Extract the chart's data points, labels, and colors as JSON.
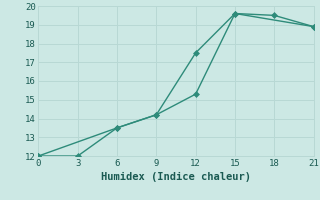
{
  "line1_x": [
    0,
    6,
    9,
    12,
    15,
    18,
    21
  ],
  "line1_y": [
    12,
    13.5,
    14.2,
    17.5,
    19.6,
    19.5,
    18.9
  ],
  "line2_x": [
    0,
    3,
    6,
    9,
    12,
    15,
    21
  ],
  "line2_y": [
    12,
    12,
    13.5,
    14.2,
    15.3,
    19.6,
    18.9
  ],
  "line_color": "#2e8b7a",
  "marker_color": "#2e8b7a",
  "bg_color": "#cce8e4",
  "grid_color": "#b8d8d4",
  "xlabel": "Humidex (Indice chaleur)",
  "xlim": [
    0,
    21
  ],
  "ylim": [
    12,
    20
  ],
  "xticks": [
    0,
    3,
    6,
    9,
    12,
    15,
    18,
    21
  ],
  "yticks": [
    12,
    13,
    14,
    15,
    16,
    17,
    18,
    19,
    20
  ],
  "xlabel_fontsize": 7.5,
  "tick_fontsize": 6.5,
  "linewidth": 1.0,
  "markersize": 3.0
}
